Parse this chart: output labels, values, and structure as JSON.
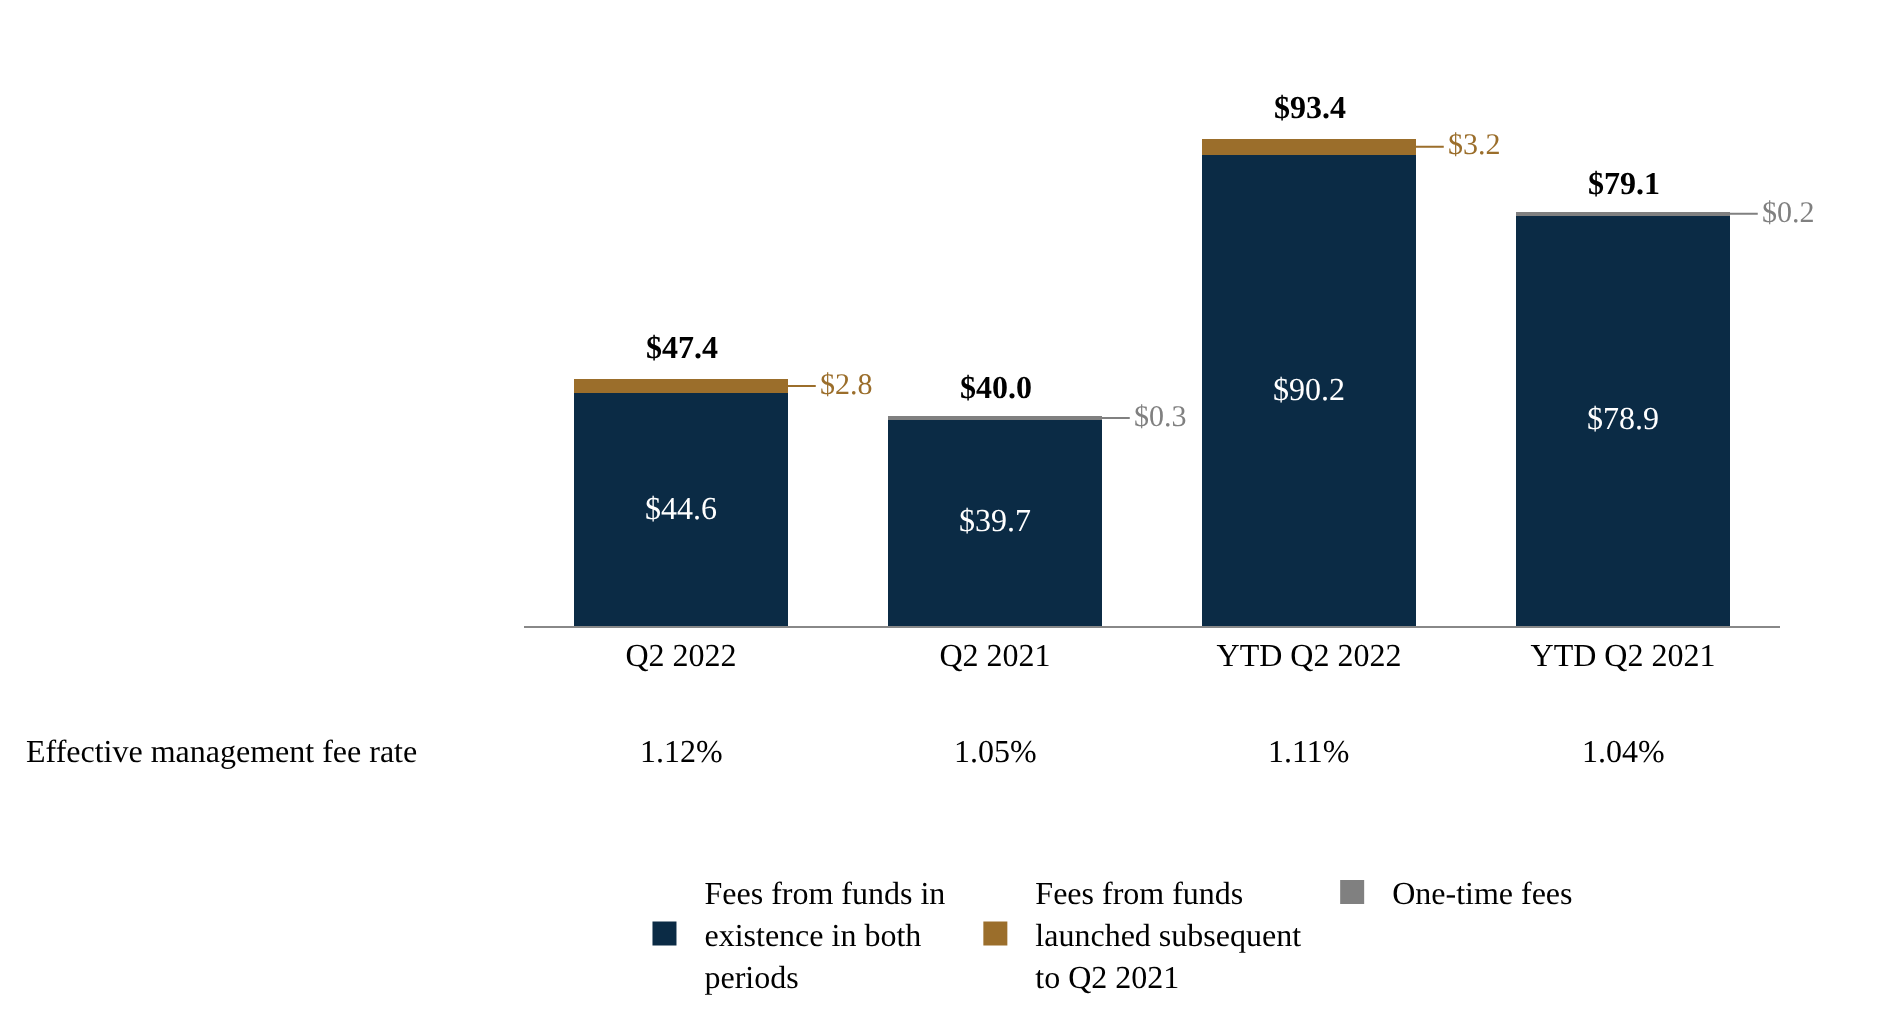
{
  "chart_data": {
    "type": "bar",
    "stacked": true,
    "categories": [
      "Q2 2022",
      "Q2 2021",
      "YTD Q2 2022",
      "YTD Q2 2021"
    ],
    "series": [
      {
        "name": "Fees from funds in existence in both periods",
        "color": "#0b2b45",
        "values": [
          44.6,
          39.7,
          90.2,
          78.9
        ],
        "value_labels": [
          "$44.6",
          "$39.7",
          "$90.2",
          "$78.9"
        ]
      },
      {
        "name": "Fees from funds launched subsequent to Q2 2021",
        "color": "#9b6e2b",
        "values": [
          2.8,
          null,
          3.2,
          null
        ],
        "value_labels": [
          "$2.8",
          null,
          "$3.2",
          null
        ]
      },
      {
        "name": "One-time fees",
        "color": "#808080",
        "values": [
          null,
          0.3,
          null,
          0.2
        ],
        "value_labels": [
          null,
          "$0.3",
          null,
          "$0.2"
        ]
      }
    ],
    "totals": [
      "$47.4",
      "$40.0",
      "$93.4",
      "$79.1"
    ],
    "annotations": [
      "Effective management fee rate",
      "1.12%",
      "1.05%",
      "1.11%",
      "1.04%"
    ],
    "legend": "bottom"
  }
}
